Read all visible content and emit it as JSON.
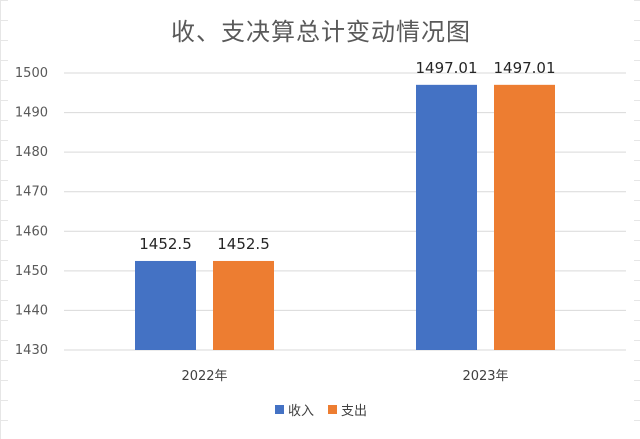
{
  "chart_data": {
    "type": "bar",
    "title": "收、支决算总计变动情况图",
    "categories": [
      "2022年",
      "2023年"
    ],
    "series": [
      {
        "name": "收入",
        "values": [
          1452.5,
          1497.01
        ],
        "labels": [
          "1452.5",
          "1497.01"
        ],
        "color": "#4472C4"
      },
      {
        "name": "支出",
        "values": [
          1452.5,
          1497.01
        ],
        "labels": [
          "1452.5",
          "1497.01"
        ],
        "color": "#ED7D31"
      }
    ],
    "ylim": [
      1430,
      1500
    ],
    "yticks": [
      1430,
      1440,
      1450,
      1460,
      1470,
      1480,
      1490,
      1500
    ],
    "grid": true,
    "legend_position": "bottom"
  }
}
